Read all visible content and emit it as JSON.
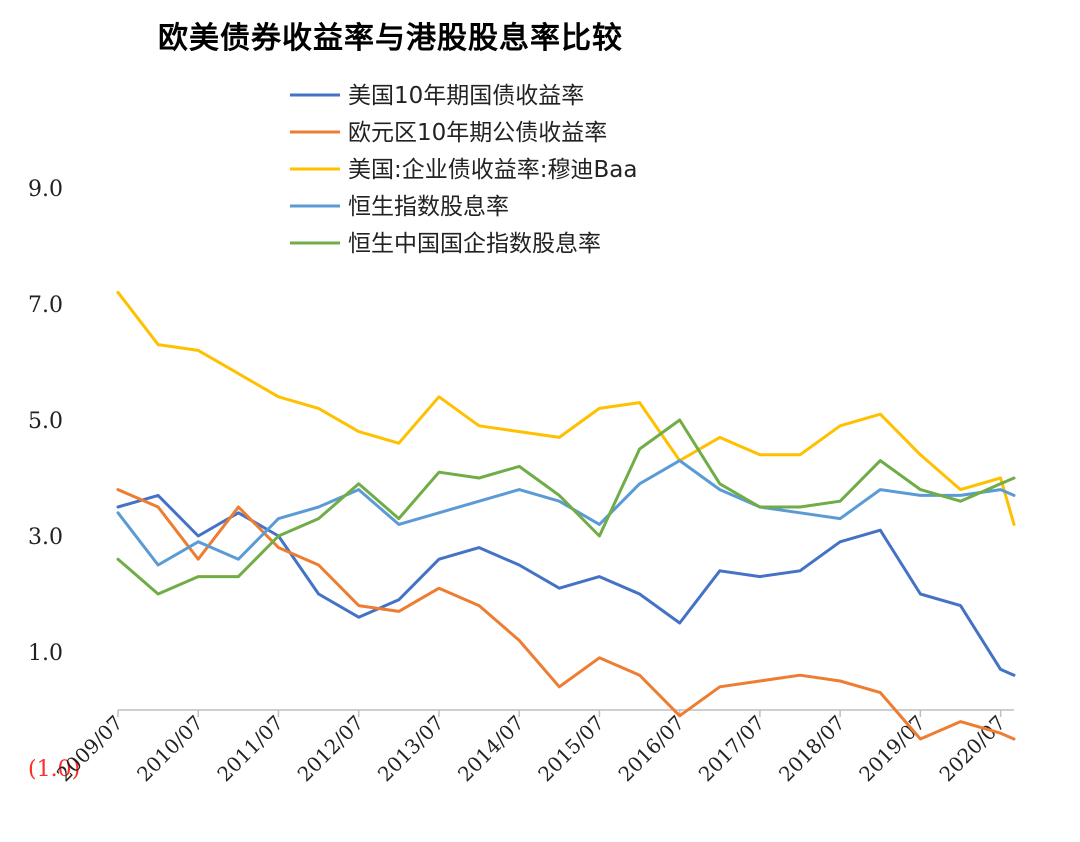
{
  "chart_data": {
    "type": "line",
    "title": "欧美债券收益率与港股股息率比较",
    "xlabel": "",
    "ylabel": "",
    "ylim": [
      -1.0,
      10.0
    ],
    "yticks": [
      {
        "value": 9.0,
        "label": "9.0"
      },
      {
        "value": 7.0,
        "label": "7.0"
      },
      {
        "value": 5.0,
        "label": "5.0"
      },
      {
        "value": 3.0,
        "label": "3.0"
      },
      {
        "value": 1.0,
        "label": "1.0"
      },
      {
        "value": -1.0,
        "label": "(1.0)",
        "negative": true
      }
    ],
    "x": [
      "2009/07",
      "2010/01",
      "2010/07",
      "2011/01",
      "2011/07",
      "2012/01",
      "2012/07",
      "2013/01",
      "2013/07",
      "2014/01",
      "2014/07",
      "2015/01",
      "2015/07",
      "2016/01",
      "2016/07",
      "2017/01",
      "2017/07",
      "2018/01",
      "2018/07",
      "2019/01",
      "2019/07",
      "2020/01",
      "2020/07",
      "2020/09"
    ],
    "xtick_labels": [
      "2009/07",
      "2010/07",
      "2011/07",
      "2012/07",
      "2013/07",
      "2014/07",
      "2015/07",
      "2016/07",
      "2017/07",
      "2018/07",
      "2019/07",
      "2020/07"
    ],
    "grid": false,
    "legend_position": "top",
    "series": [
      {
        "name": "美国10年期国债收益率",
        "color": "#4472c4",
        "values": [
          3.5,
          3.7,
          3.0,
          3.4,
          3.0,
          2.0,
          1.6,
          1.9,
          2.6,
          2.8,
          2.5,
          2.1,
          2.3,
          2.0,
          1.5,
          2.4,
          2.3,
          2.4,
          2.9,
          3.1,
          2.0,
          1.8,
          0.7,
          0.6
        ]
      },
      {
        "name": "欧元区10年期公债收益率",
        "color": "#ed7d31",
        "values": [
          3.8,
          3.5,
          2.6,
          3.5,
          2.8,
          2.5,
          1.8,
          1.7,
          2.1,
          1.8,
          1.2,
          0.4,
          0.9,
          0.6,
          -0.1,
          0.4,
          0.5,
          0.6,
          0.5,
          0.3,
          -0.5,
          -0.2,
          -0.4,
          -0.5
        ]
      },
      {
        "name": "美国:企业债收益率:穆迪Baa",
        "color": "#ffc000",
        "values": [
          7.2,
          6.3,
          6.2,
          5.8,
          5.4,
          5.2,
          4.8,
          4.6,
          5.4,
          4.9,
          4.8,
          4.7,
          5.2,
          5.3,
          4.3,
          4.7,
          4.4,
          4.4,
          4.9,
          5.1,
          4.4,
          3.8,
          4.0,
          3.2
        ]
      },
      {
        "name": "恒生指数股息率",
        "color": "#5b9bd5",
        "values": [
          3.4,
          2.5,
          2.9,
          2.6,
          3.3,
          3.5,
          3.8,
          3.2,
          3.4,
          3.6,
          3.8,
          3.6,
          3.2,
          3.9,
          4.3,
          3.8,
          3.5,
          3.4,
          3.3,
          3.8,
          3.7,
          3.7,
          3.8,
          3.7
        ]
      },
      {
        "name": "恒生中国国企指数股息率",
        "color": "#70ad47",
        "values": [
          2.6,
          2.0,
          2.3,
          2.3,
          3.0,
          3.3,
          3.9,
          3.3,
          4.1,
          4.0,
          4.2,
          3.7,
          3.0,
          4.5,
          5.0,
          3.9,
          3.5,
          3.5,
          3.6,
          4.3,
          3.8,
          3.6,
          3.9,
          4.0
        ]
      }
    ]
  }
}
